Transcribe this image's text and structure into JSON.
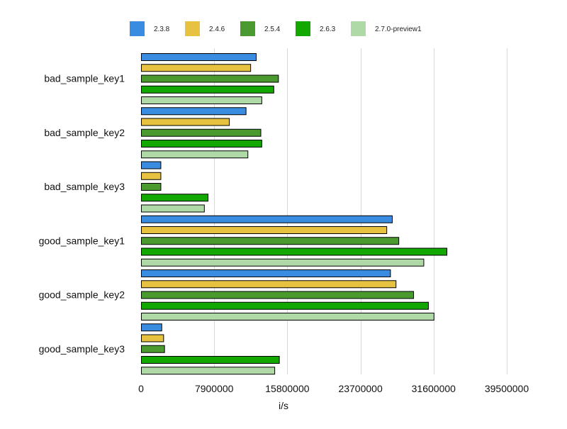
{
  "chart_data": {
    "type": "bar",
    "orientation": "horizontal",
    "title": "",
    "xlabel": "i/s",
    "ylabel": "",
    "xlim": [
      0,
      39500000
    ],
    "xticks": [
      0,
      7900000,
      15800000,
      23700000,
      31600000,
      39500000
    ],
    "xtick_labels": [
      "0",
      "7900000",
      "15800000",
      "23700000",
      "31600000",
      "39500000"
    ],
    "grid": true,
    "legend_position": "top",
    "categories": [
      "bad_sample_key1",
      "bad_sample_key2",
      "bad_sample_key3",
      "good_sample_key1",
      "good_sample_key2",
      "good_sample_key3"
    ],
    "series": [
      {
        "name": "2.3.8",
        "color": "#3a8ce0",
        "values": [
          12400000,
          11300000,
          2100000,
          27100000,
          26900000,
          2200000
        ]
      },
      {
        "name": "2.4.6",
        "color": "#e6c240",
        "values": [
          11800000,
          9500000,
          2100000,
          26500000,
          27500000,
          2400000
        ]
      },
      {
        "name": "2.5.4",
        "color": "#4a9a30",
        "values": [
          14800000,
          12900000,
          2100000,
          27800000,
          29400000,
          2500000
        ]
      },
      {
        "name": "2.6.3",
        "color": "#12a800",
        "values": [
          14300000,
          13000000,
          7200000,
          33000000,
          31000000,
          14900000
        ]
      },
      {
        "name": "2.7.0-preview1",
        "color": "#afd9a6",
        "values": [
          13000000,
          11500000,
          6800000,
          30500000,
          31600000,
          14400000
        ]
      }
    ]
  }
}
